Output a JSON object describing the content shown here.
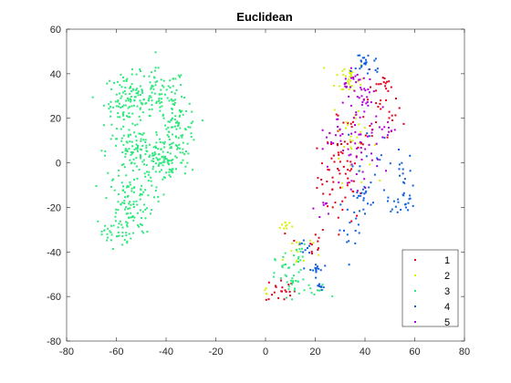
{
  "chart_data": {
    "type": "scatter",
    "title": "Euclidean",
    "xlabel": "",
    "ylabel": "",
    "xlim": [
      -80,
      80
    ],
    "ylim": [
      -80,
      60
    ],
    "xticks": [
      -80,
      -60,
      -40,
      -20,
      0,
      20,
      40,
      60,
      80
    ],
    "yticks": [
      -80,
      -60,
      -40,
      -20,
      0,
      20,
      40,
      60
    ],
    "grid": false,
    "legend_position": "bottom-right",
    "series": [
      {
        "name": "1",
        "color": "#e0001a",
        "clusters": [
          {
            "cx": 31,
            "cy": -6,
            "sx": 5,
            "sy": 10,
            "n": 60
          },
          {
            "cx": 45,
            "cy": 22,
            "sx": 5,
            "sy": 8,
            "n": 30
          },
          {
            "cx": 49,
            "cy": 35,
            "sx": 1.5,
            "sy": 1.5,
            "n": 10
          },
          {
            "cx": 6,
            "cy": -57,
            "sx": 3,
            "sy": 3,
            "n": 20
          },
          {
            "cx": 17,
            "cy": -36,
            "sx": 4,
            "sy": 4,
            "n": 12
          },
          {
            "cx": 30,
            "cy": 15,
            "sx": 4,
            "sy": 6,
            "n": 15
          }
        ]
      },
      {
        "name": "2",
        "color": "#d9ee0e",
        "clusters": [
          {
            "cx": 34,
            "cy": 38,
            "sx": 3,
            "sy": 4,
            "n": 30
          },
          {
            "cx": 35,
            "cy": 12,
            "sx": 4,
            "sy": 10,
            "n": 30
          },
          {
            "cx": 8,
            "cy": -28,
            "sx": 1.5,
            "sy": 1.5,
            "n": 10
          },
          {
            "cx": 13,
            "cy": -40,
            "sx": 3,
            "sy": 5,
            "n": 15
          },
          {
            "cx": 0,
            "cy": -58,
            "sx": 1,
            "sy": 1,
            "n": 4
          }
        ]
      },
      {
        "name": "3",
        "color": "#2ee87c",
        "clusters": [
          {
            "cx": -55,
            "cy": 28,
            "sx": 5,
            "sy": 6,
            "n": 120
          },
          {
            "cx": -42,
            "cy": 30,
            "sx": 5,
            "sy": 6,
            "n": 80
          },
          {
            "cx": -35,
            "cy": 15,
            "sx": 4,
            "sy": 6,
            "n": 80
          },
          {
            "cx": -52,
            "cy": 5,
            "sx": 6,
            "sy": 5,
            "n": 100
          },
          {
            "cx": -40,
            "cy": 0,
            "sx": 5,
            "sy": 5,
            "n": 80
          },
          {
            "cx": -55,
            "cy": -18,
            "sx": 5,
            "sy": 7,
            "n": 110
          },
          {
            "cx": -60,
            "cy": -32,
            "sx": 3,
            "sy": 3,
            "n": 30
          },
          {
            "cx": 10,
            "cy": -52,
            "sx": 3,
            "sy": 6,
            "n": 40
          },
          {
            "cx": 14,
            "cy": -42,
            "sx": 2,
            "sy": 3,
            "n": 10
          },
          {
            "cx": 20,
            "cy": -58,
            "sx": 3,
            "sy": 2,
            "n": 10
          }
        ]
      },
      {
        "name": "4",
        "color": "#1060e0",
        "clusters": [
          {
            "cx": 41,
            "cy": 45,
            "sx": 3,
            "sy": 3,
            "n": 25
          },
          {
            "cx": 39,
            "cy": -15,
            "sx": 2,
            "sy": 3,
            "n": 20
          },
          {
            "cx": 55,
            "cy": -18,
            "sx": 3,
            "sy": 2,
            "n": 20
          },
          {
            "cx": 55,
            "cy": -5,
            "sx": 2,
            "sy": 5,
            "n": 15
          },
          {
            "cx": 20,
            "cy": -48,
            "sx": 1.5,
            "sy": 1.5,
            "n": 15
          },
          {
            "cx": 22,
            "cy": -55,
            "sx": 1.5,
            "sy": 1,
            "n": 8
          },
          {
            "cx": 35,
            "cy": -30,
            "sx": 3,
            "sy": 5,
            "n": 15
          },
          {
            "cx": 15,
            "cy": -38,
            "sx": 1.5,
            "sy": 2,
            "n": 8
          },
          {
            "cx": 42,
            "cy": 0,
            "sx": 5,
            "sy": 8,
            "n": 15
          }
        ]
      },
      {
        "name": "5",
        "color": "#b000d8",
        "clusters": [
          {
            "cx": 40,
            "cy": 30,
            "sx": 4,
            "sy": 6,
            "n": 40
          },
          {
            "cx": 38,
            "cy": 5,
            "sx": 4,
            "sy": 8,
            "n": 40
          },
          {
            "cx": 30,
            "cy": 10,
            "sx": 4,
            "sy": 4,
            "n": 15
          },
          {
            "cx": 48,
            "cy": 15,
            "sx": 2,
            "sy": 3,
            "n": 10
          },
          {
            "cx": 24,
            "cy": -20,
            "sx": 2,
            "sy": 2,
            "n": 8
          },
          {
            "cx": 33,
            "cy": 35,
            "sx": 1.5,
            "sy": 2,
            "n": 8
          }
        ]
      }
    ]
  }
}
